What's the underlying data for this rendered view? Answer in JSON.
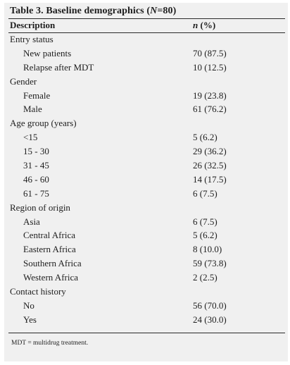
{
  "table": {
    "title_prefix": "Table 3. Baseline demographics (",
    "title_n": "N",
    "title_suffix": "=80)",
    "header_description": "Description",
    "header_n": "n",
    "header_pct": " (%)",
    "rows": [
      {
        "label": "Entry status",
        "value": "",
        "sub": false
      },
      {
        "label": "New patients",
        "value": "70 (87.5)",
        "sub": true
      },
      {
        "label": "Relapse after MDT",
        "value": "10 (12.5)",
        "sub": true
      },
      {
        "label": "Gender",
        "value": "",
        "sub": false
      },
      {
        "label": "Female",
        "value": "19 (23.8)",
        "sub": true
      },
      {
        "label": "Male",
        "value": "61 (76.2)",
        "sub": true
      },
      {
        "label": "Age group (years)",
        "value": "",
        "sub": false
      },
      {
        "label": "<15",
        "value": "5 (6.2)",
        "sub": true
      },
      {
        "label": "15 - 30",
        "value": "29 (36.2)",
        "sub": true
      },
      {
        "label": "31 - 45",
        "value": "26 (32.5)",
        "sub": true
      },
      {
        "label": "46 - 60",
        "value": "14 (17.5)",
        "sub": true
      },
      {
        "label": "61 - 75",
        "value": "6 (7.5)",
        "sub": true
      },
      {
        "label": "Region of origin",
        "value": "",
        "sub": false
      },
      {
        "label": "Asia",
        "value": "6 (7.5)",
        "sub": true
      },
      {
        "label": "Central Africa",
        "value": "5 (6.2)",
        "sub": true
      },
      {
        "label": "Eastern Africa",
        "value": "8 (10.0)",
        "sub": true
      },
      {
        "label": "Southern Africa",
        "value": "59 (73.8)",
        "sub": true
      },
      {
        "label": "Western Africa",
        "value": "2 (2.5)",
        "sub": true
      },
      {
        "label": "Contact history",
        "value": "",
        "sub": false
      },
      {
        "label": "No",
        "value": "56 (70.0)",
        "sub": true
      },
      {
        "label": "Yes",
        "value": "24 (30.0)",
        "sub": true
      }
    ],
    "footnote": "MDT = multidrug treatment."
  }
}
